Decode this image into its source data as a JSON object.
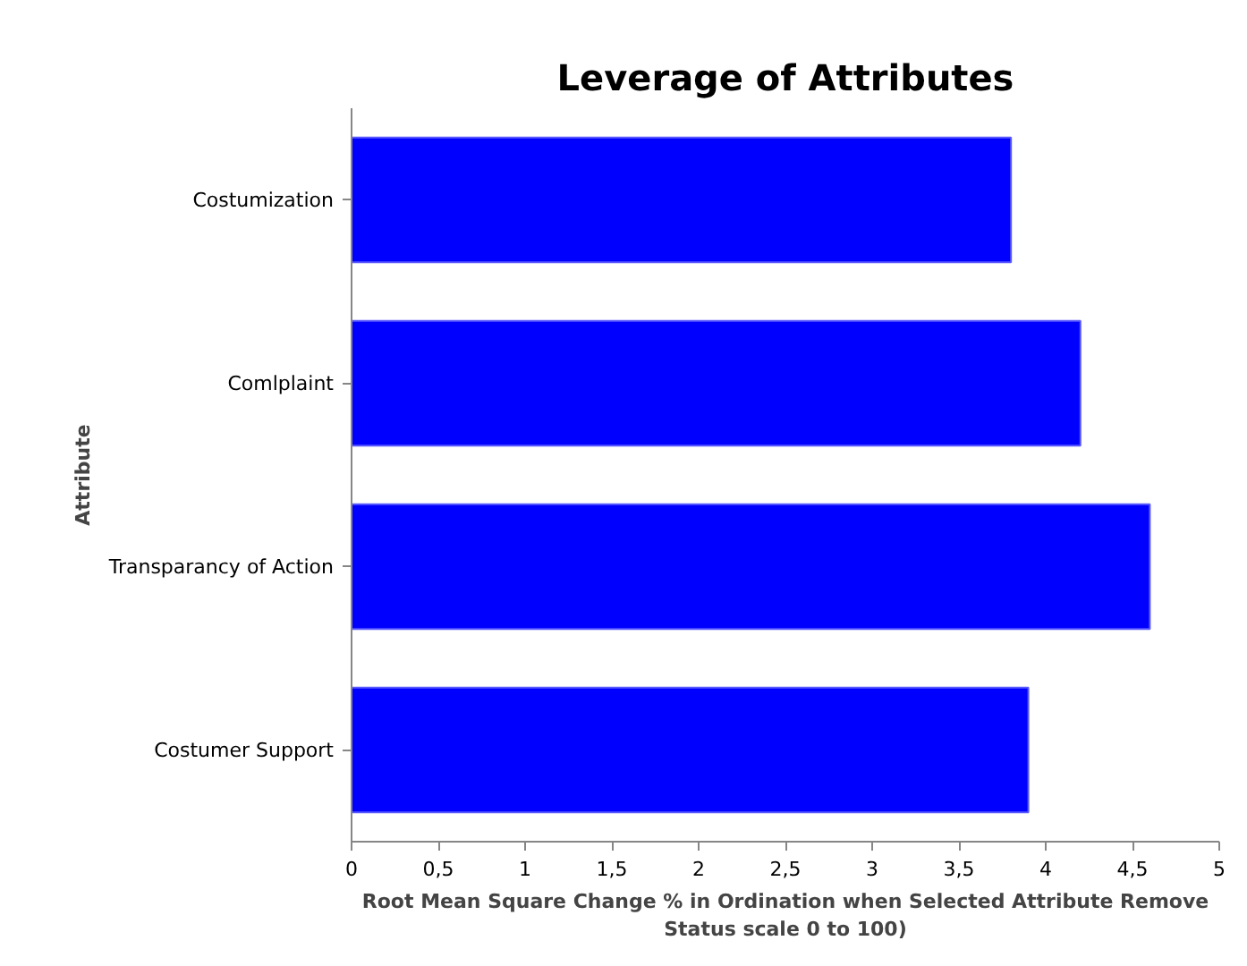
{
  "chart_data": {
    "type": "bar",
    "orientation": "horizontal",
    "title": "Leverage of Attributes",
    "xlabel": "Root Mean Square Change % in Ordination when Selected Attribute Remove\nStatus scale 0 to 100)",
    "ylabel": "Attribute",
    "categories": [
      "Costumization",
      "Comlplaint",
      "Transparancy of Action",
      "Costumer Support"
    ],
    "values": [
      3.8,
      4.2,
      4.6,
      3.9
    ],
    "color": "#0000ff",
    "xlim": [
      0,
      5
    ],
    "xticks": [
      0,
      {
        "value": 0.5,
        "label": "0,5"
      },
      1,
      {
        "value": 1.5,
        "label": "1,5"
      },
      2,
      {
        "value": 2.5,
        "label": "2,5"
      },
      3,
      {
        "value": 3.5,
        "label": "3,5"
      },
      4,
      {
        "value": 4.5,
        "label": "4,5"
      },
      5
    ],
    "grid": false
  }
}
